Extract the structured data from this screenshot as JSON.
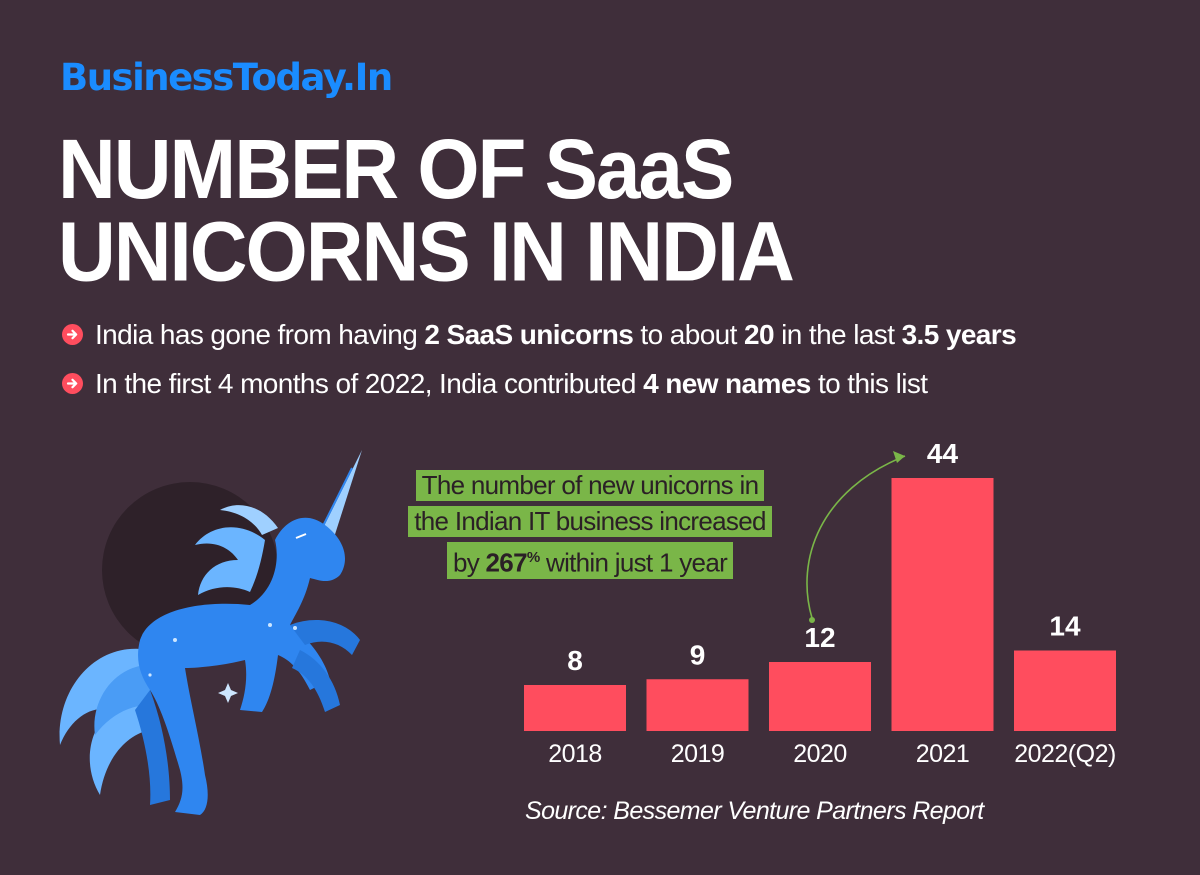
{
  "brand": "BusinessToday.In",
  "title": {
    "line1": "NUMBER OF SaaS",
    "line2": "UNICORNS IN INDIA"
  },
  "bullets": [
    {
      "parts": [
        "India has gone from having ",
        "2 SaaS unicorns",
        " to about ",
        "20",
        " in the last ",
        "3.5 years"
      ]
    },
    {
      "parts": [
        "In the first 4 months of 2022, India contributed ",
        "4 new names",
        " to this list"
      ]
    }
  ],
  "callout": {
    "line1": "The number of new unicorns in",
    "line2": "the Indian IT business increased",
    "line3_pre": "by ",
    "line3_value": "267",
    "line3_unit": "%",
    "line3_post": " within just 1 year"
  },
  "source": "Source: Bessemer Venture Partners Report",
  "colors": {
    "background": "#3f2e3a",
    "brand": "#1a8cff",
    "bar": "#ff4d5e",
    "callout": "#7ab648",
    "unicorn": "#2f86f0"
  },
  "icons": [
    "arrow-right-circle-icon",
    "unicorn-illustration",
    "curved-arrow-icon"
  ],
  "chart_data": {
    "type": "bar",
    "categories": [
      "2018",
      "2019",
      "2020",
      "2021",
      "2022(Q2)"
    ],
    "values": [
      8,
      9,
      12,
      44,
      14
    ],
    "data_labels": [
      "8",
      "9",
      "12",
      "44",
      "14"
    ],
    "title": "",
    "xlabel": "",
    "ylabel": "",
    "ylim": [
      0,
      44
    ],
    "grid": false,
    "legend": "none"
  }
}
